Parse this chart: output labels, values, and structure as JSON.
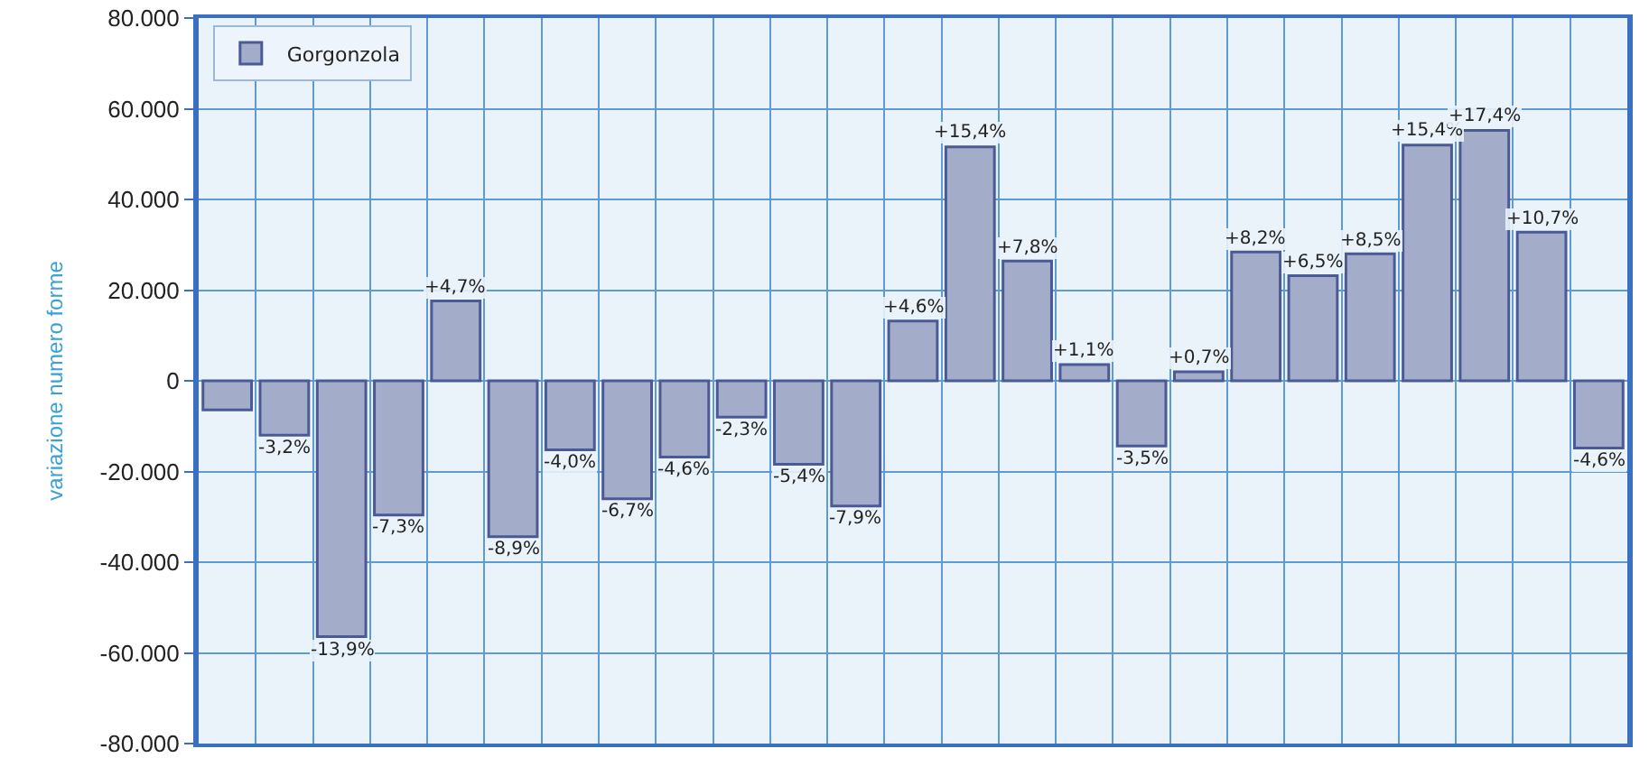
{
  "chart_data": {
    "type": "bar",
    "ylabel": "variazione numero forme",
    "categories": [
      null,
      null,
      null,
      null,
      null,
      null,
      null,
      null,
      null,
      null,
      null,
      null,
      null,
      null,
      null,
      null,
      null,
      null,
      null,
      null,
      null,
      null,
      null,
      null,
      null
    ],
    "series": [
      {
        "name": "Gorgonzola",
        "color": "#a3adc9",
        "values": [
          -6400,
          -12000,
          -56400,
          -29600,
          17600,
          -34400,
          -15200,
          -26000,
          -16800,
          -8000,
          -18400,
          -27600,
          13200,
          51600,
          26400,
          3600,
          -14400,
          2000,
          28400,
          23200,
          28000,
          52000,
          55200,
          32800,
          -14800
        ]
      }
    ],
    "annotations": [
      {
        "text": "-3,2%",
        "y": -12000
      },
      {
        "text": "-13,9%",
        "y": -56400
      },
      {
        "text": "-7,3%",
        "y": -29600
      },
      {
        "text": "+4,7%",
        "y": 17600
      },
      {
        "text": "-8,9%",
        "y": -34400
      },
      {
        "text": "-4,0%",
        "y": -15200
      },
      {
        "text": "-6,7%",
        "y": -26000
      },
      {
        "text": "-4,6%",
        "y": -16800
      },
      {
        "text": "-2,3%",
        "y": -8000
      },
      {
        "text": "-5,4%",
        "y": -18400
      },
      {
        "text": "-7,9%",
        "y": -27600
      },
      {
        "text": "+4,6%",
        "y": 13200
      },
      {
        "text": "+15,4%",
        "y": 51600
      },
      {
        "text": "+7,8%",
        "y": 26400
      },
      {
        "text": "+1,1%",
        "y": 3600
      },
      {
        "text": "-3,5%",
        "y": -14400
      },
      {
        "text": "+0,7%",
        "y": 2000
      },
      {
        "text": "+8,2%",
        "y": 28400
      },
      {
        "text": "+6,5%",
        "y": 23200
      },
      {
        "text": "+8,5%",
        "y": 28000
      },
      {
        "text": "+15,4%",
        "y": 52000
      },
      {
        "text": "+17,4%",
        "y": 55200
      },
      {
        "text": "+10,7%",
        "y": 32800
      },
      {
        "text": "-4,6%",
        "y": -14800
      }
    ],
    "ylim": [
      -80000,
      80000
    ],
    "yticks": [
      {
        "value": -80000,
        "label": "-80.000"
      },
      {
        "value": -60000,
        "label": "-60.000"
      },
      {
        "value": -40000,
        "label": "-40.000"
      },
      {
        "value": -20000,
        "label": "-20.000"
      },
      0,
      {
        "value": 20000,
        "label": "20.000"
      },
      {
        "value": 40000,
        "label": "40.000"
      },
      {
        "value": 60000,
        "label": "60.000"
      },
      {
        "value": 80000,
        "label": "80.000"
      }
    ],
    "grid": true,
    "legend": "top left",
    "tick_labels": "y"
  }
}
